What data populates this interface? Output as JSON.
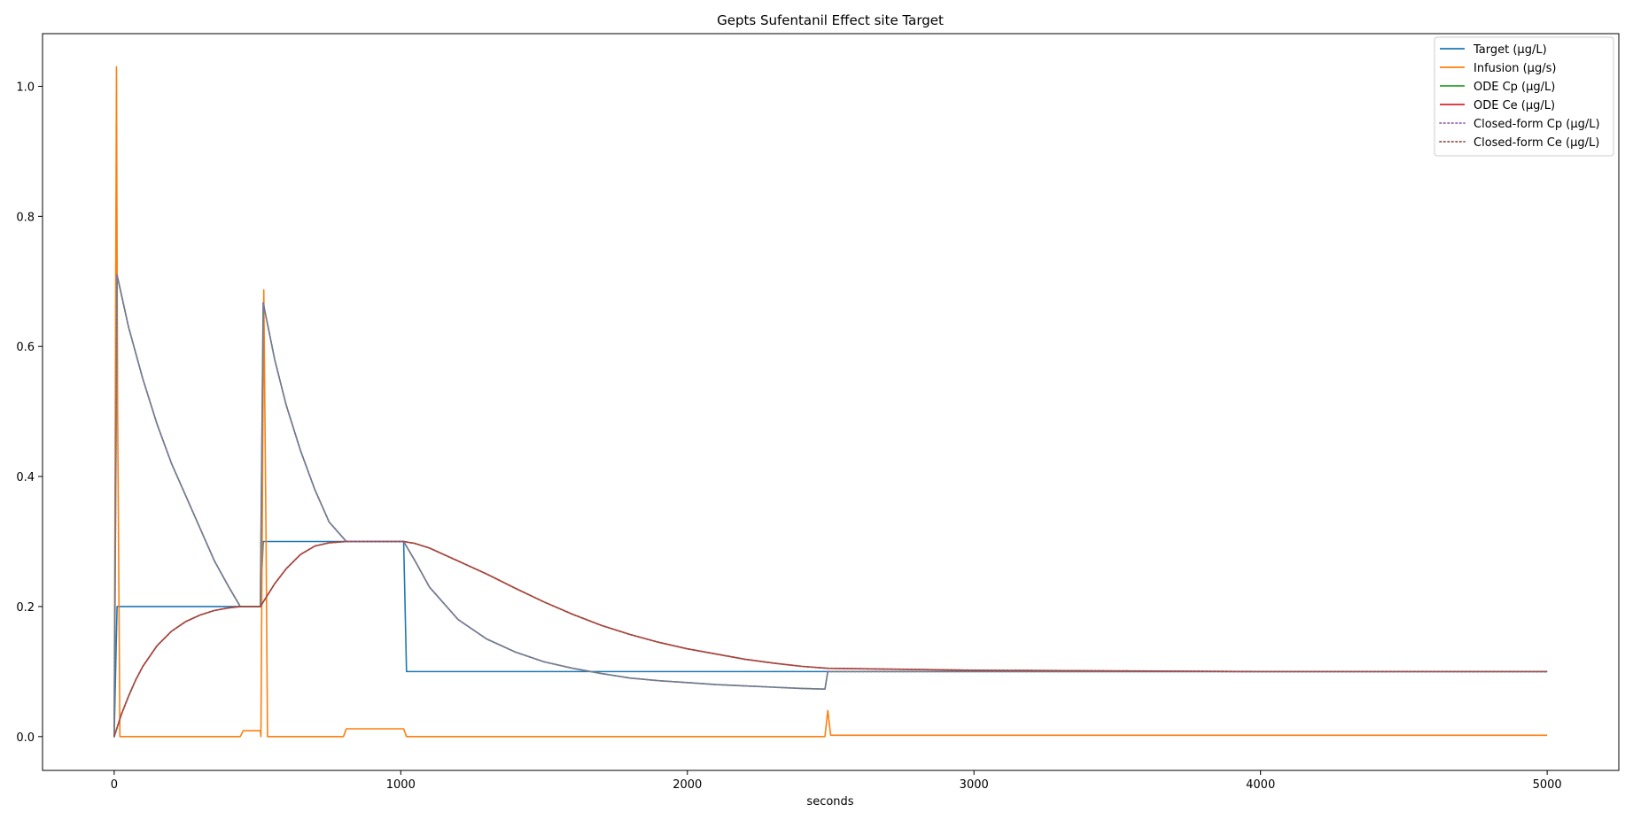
{
  "chart_data": {
    "type": "line",
    "title": "Gepts Sufentanil Effect site Target",
    "xlabel": "seconds",
    "ylabel": "",
    "xlim": [
      -250,
      5250
    ],
    "ylim": [
      -0.052,
      1.081
    ],
    "x_ticks": [
      0,
      1000,
      2000,
      3000,
      4000,
      5000
    ],
    "x_tick_labels": [
      "0",
      "1000",
      "2000",
      "3000",
      "4000",
      "5000"
    ],
    "y_ticks": [
      0.0,
      0.2,
      0.4,
      0.6,
      0.8,
      1.0
    ],
    "y_tick_labels": [
      "0.0",
      "0.2",
      "0.4",
      "0.6",
      "0.8",
      "1.0"
    ],
    "grid": false,
    "legend_position": "top-right",
    "series": [
      {
        "name": "Target (µg/L)",
        "color": "#1f77b4",
        "style": "solid",
        "x": [
          0,
          10,
          20,
          510,
          520,
          1010,
          1020,
          2480,
          2490,
          5000
        ],
        "y": [
          0.0,
          0.2,
          0.2,
          0.2,
          0.3,
          0.3,
          0.1,
          0.1,
          0.1,
          0.1
        ]
      },
      {
        "name": "Infusion (µg/s)",
        "color": "#ff7f0e",
        "style": "solid",
        "x": [
          0,
          8,
          12,
          20,
          440,
          450,
          510,
          512,
          522,
          530,
          535,
          800,
          810,
          1010,
          1020,
          2480,
          2490,
          2500,
          5000
        ],
        "y": [
          0.0,
          1.03,
          0.5,
          0.0,
          0.0,
          0.009,
          0.009,
          0.0,
          0.687,
          0.3,
          0.0,
          0.0,
          0.012,
          0.012,
          0.0,
          0.0,
          0.04,
          0.002,
          0.002
        ]
      },
      {
        "name": "ODE Cp (µg/L)",
        "color": "#2ca02c",
        "style": "solid",
        "x": [
          0,
          10,
          50,
          100,
          150,
          200,
          250,
          300,
          350,
          400,
          440,
          510,
          520,
          560,
          600,
          650,
          700,
          750,
          810,
          1010,
          1050,
          1100,
          1200,
          1300,
          1400,
          1500,
          1600,
          1700,
          1800,
          1900,
          2000,
          2100,
          2200,
          2300,
          2400,
          2480,
          2490,
          5000
        ],
        "y": [
          0.0,
          0.71,
          0.63,
          0.55,
          0.48,
          0.42,
          0.37,
          0.32,
          0.27,
          0.23,
          0.2,
          0.2,
          0.667,
          0.58,
          0.51,
          0.44,
          0.38,
          0.33,
          0.3,
          0.3,
          0.27,
          0.23,
          0.18,
          0.15,
          0.13,
          0.115,
          0.105,
          0.097,
          0.09,
          0.086,
          0.083,
          0.08,
          0.078,
          0.076,
          0.074,
          0.073,
          0.1,
          0.1
        ]
      },
      {
        "name": "ODE Ce (µg/L)",
        "color": "#d62728",
        "style": "solid",
        "x": [
          0,
          25,
          50,
          75,
          100,
          150,
          200,
          250,
          300,
          350,
          400,
          440,
          510,
          530,
          560,
          600,
          650,
          700,
          750,
          810,
          1010,
          1050,
          1100,
          1200,
          1300,
          1400,
          1500,
          1600,
          1700,
          1800,
          1900,
          2000,
          2100,
          2200,
          2300,
          2400,
          2490,
          3000,
          3500,
          4000,
          4500,
          5000
        ],
        "y": [
          0.0,
          0.034,
          0.062,
          0.087,
          0.108,
          0.14,
          0.162,
          0.177,
          0.187,
          0.194,
          0.198,
          0.2,
          0.2,
          0.214,
          0.235,
          0.258,
          0.28,
          0.293,
          0.298,
          0.3,
          0.3,
          0.297,
          0.29,
          0.27,
          0.25,
          0.228,
          0.207,
          0.188,
          0.171,
          0.157,
          0.145,
          0.135,
          0.127,
          0.119,
          0.113,
          0.108,
          0.105,
          0.102,
          0.101,
          0.1,
          0.1,
          0.1
        ]
      },
      {
        "name": "Closed-form Cp (µg/L)",
        "color": "#9467bd",
        "style": "dotted",
        "x": [
          0,
          10,
          50,
          100,
          150,
          200,
          250,
          300,
          350,
          400,
          440,
          510,
          520,
          560,
          600,
          650,
          700,
          750,
          810,
          1010,
          1050,
          1100,
          1200,
          1300,
          1400,
          1500,
          1600,
          1700,
          1800,
          1900,
          2000,
          2100,
          2200,
          2300,
          2400,
          2480,
          2490,
          5000
        ],
        "y": [
          0.0,
          0.71,
          0.63,
          0.55,
          0.48,
          0.42,
          0.37,
          0.32,
          0.27,
          0.23,
          0.2,
          0.2,
          0.667,
          0.58,
          0.51,
          0.44,
          0.38,
          0.33,
          0.3,
          0.3,
          0.27,
          0.23,
          0.18,
          0.15,
          0.13,
          0.115,
          0.105,
          0.097,
          0.09,
          0.086,
          0.083,
          0.08,
          0.078,
          0.076,
          0.074,
          0.073,
          0.1,
          0.1
        ]
      },
      {
        "name": "Closed-form Ce (µg/L)",
        "color": "#8c564b",
        "style": "dotted",
        "x": [
          0,
          25,
          50,
          75,
          100,
          150,
          200,
          250,
          300,
          350,
          400,
          440,
          510,
          530,
          560,
          600,
          650,
          700,
          750,
          810,
          1010,
          1050,
          1100,
          1200,
          1300,
          1400,
          1500,
          1600,
          1700,
          1800,
          1900,
          2000,
          2100,
          2200,
          2300,
          2400,
          2490,
          3000,
          3500,
          4000,
          4500,
          5000
        ],
        "y": [
          0.0,
          0.034,
          0.062,
          0.087,
          0.108,
          0.14,
          0.162,
          0.177,
          0.187,
          0.194,
          0.198,
          0.2,
          0.2,
          0.214,
          0.235,
          0.258,
          0.28,
          0.293,
          0.298,
          0.3,
          0.3,
          0.297,
          0.29,
          0.27,
          0.25,
          0.228,
          0.207,
          0.188,
          0.171,
          0.157,
          0.145,
          0.135,
          0.127,
          0.119,
          0.113,
          0.108,
          0.105,
          0.102,
          0.101,
          0.1,
          0.1,
          0.1
        ]
      }
    ]
  }
}
